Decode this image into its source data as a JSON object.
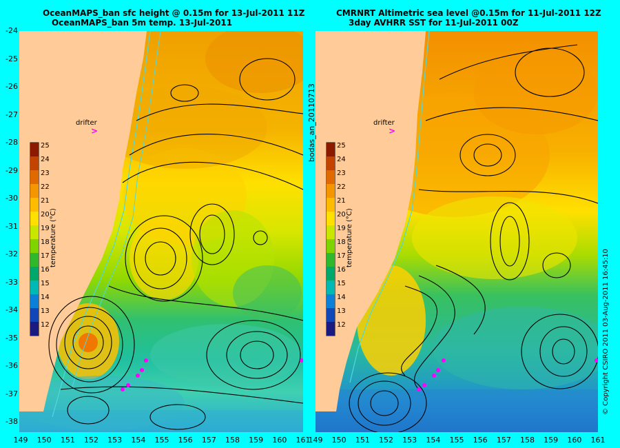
{
  "left_panel": {
    "title_line1": "OceanMAPS_ban sfc height @ 0.15m for 13-Jul-2011 11Z",
    "title_line2": "OceanMAPS_ban 5m temp. 13-Jul-2011",
    "drifter_label": "drifter"
  },
  "right_panel": {
    "title_line1": "CMRNRT Altimetric sea level  @0.15m  for 11-Jul-2011 12Z",
    "title_line2": "3day AVHRR SST for 11-Jul-2011 00Z",
    "drifter_label": "drifter"
  },
  "side_label": "bodas_an_20110713",
  "copyright": "© Copyright CSIRO 2011  03-Aug-2011 16:45:10",
  "colorbar": {
    "label": "temperature (°C)",
    "ticks": [
      "25",
      "24",
      "23",
      "22",
      "21",
      "20",
      "19",
      "18",
      "17",
      "16",
      "15",
      "14",
      "13",
      "12"
    ],
    "colors": [
      "#8b1a00",
      "#c24400",
      "#e06a00",
      "#f39600",
      "#ffbb00",
      "#ffe000",
      "#c8e600",
      "#7fd400",
      "#2fb82e",
      "#00a86b",
      "#00b8b4",
      "#0a80d8",
      "#1046b8",
      "#1a1a80"
    ]
  },
  "axes": {
    "lat_ticks": [
      "-24",
      "-25",
      "-26",
      "-27",
      "-28",
      "-29",
      "-30",
      "-31",
      "-32",
      "-33",
      "-34",
      "-35",
      "-36",
      "-37",
      "-38"
    ],
    "lon_ticks_left": [
      "149",
      "150",
      "151",
      "152",
      "153",
      "154",
      "155",
      "156",
      "157",
      "158",
      "159",
      "160",
      "161"
    ],
    "lon_ticks_right": [
      "149",
      "150",
      "151",
      "152",
      "153",
      "154",
      "155",
      "156",
      "157",
      "158",
      "159",
      "160",
      "161"
    ],
    "lat_range": [
      -38.5,
      -24
    ],
    "lon_range": [
      149,
      161
    ]
  },
  "colors": {
    "background": "#00ffff",
    "land": "#ffcc99",
    "contour": "#000000",
    "isobath": "#4ed8e0",
    "drifter": "#ff00ff"
  }
}
